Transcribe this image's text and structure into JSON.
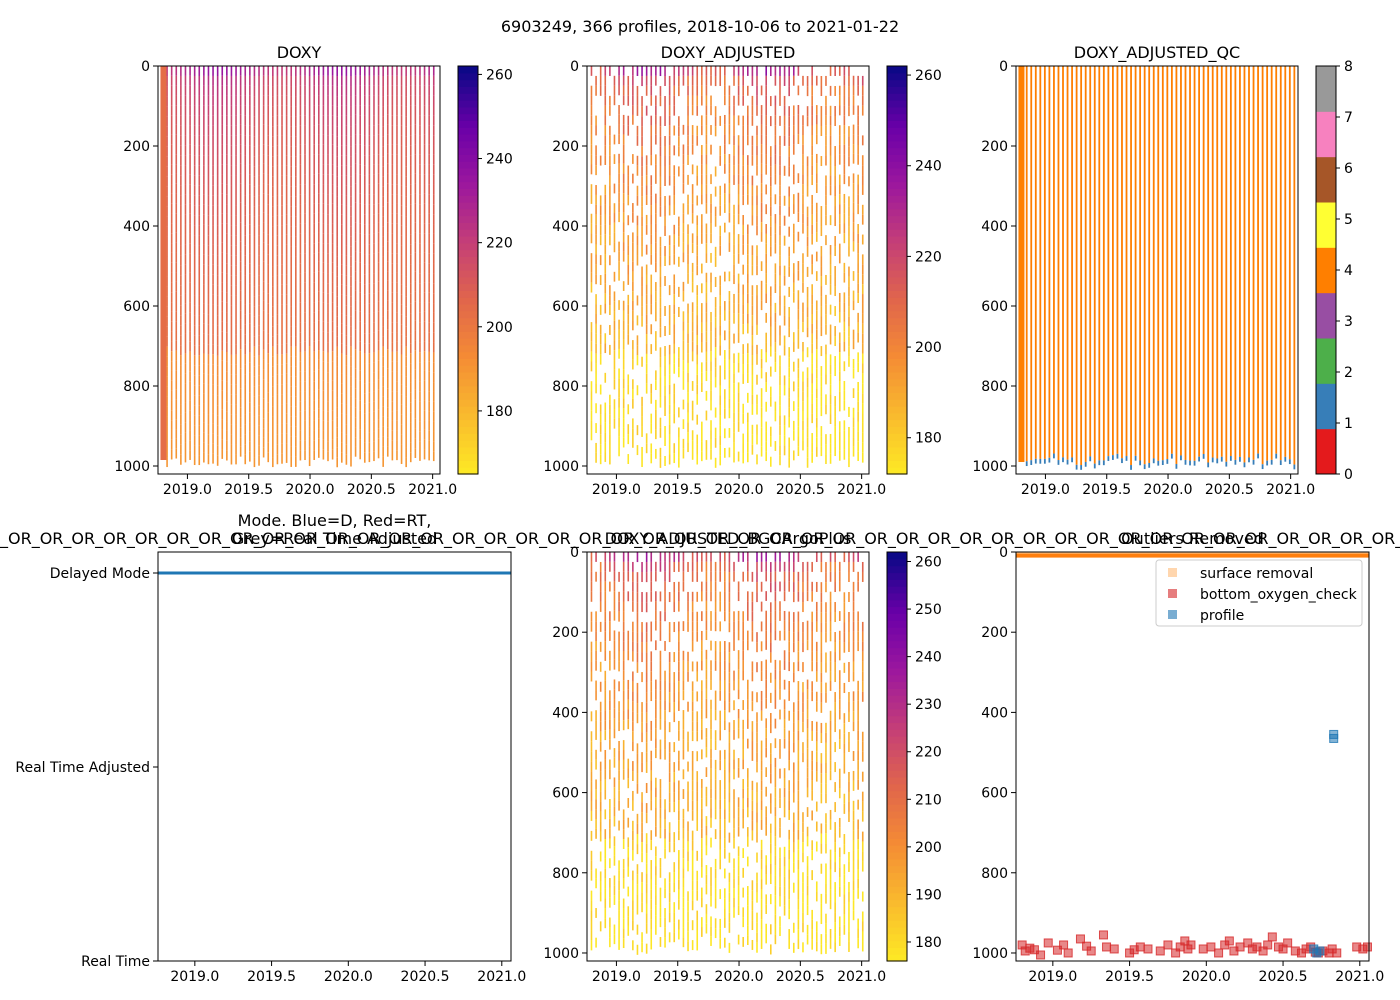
{
  "figure_title": "6903249, 366 profiles, 2018-10-06 to 2021-01-22",
  "colors": {
    "depth_colormap": [
      "#fde725",
      "#f9b92e",
      "#f48b35",
      "#e0654c",
      "#c43e78",
      "#9c179e",
      "#6a00a8",
      "#0d0887"
    ],
    "qc_colors": [
      "#e41a1c",
      "#377eb8",
      "#4daf4a",
      "#984ea3",
      "#ff7f00",
      "#ffff33",
      "#a65628",
      "#f781bf",
      "#999999"
    ],
    "delayed_mode": "#1f77b4",
    "surface_removal": "#ffbb78",
    "bottom_oxygen_check": "#d62728",
    "profile": "#1f77b4"
  },
  "chart_data": [
    {
      "id": "doxy",
      "type": "heatmap",
      "title": "DOXY",
      "xlim": [
        2018.76,
        2021.06
      ],
      "xticks": [
        "2019.0",
        "2019.5",
        "2020.0",
        "2020.5",
        "2021.0"
      ],
      "ylim": [
        1020,
        0
      ],
      "yticks": [
        "0",
        "200",
        "400",
        "600",
        "800",
        "1000"
      ],
      "colorbar": {
        "min": 165,
        "max": 262,
        "ticks": [
          "180",
          "200",
          "220",
          "240",
          "260"
        ]
      }
    },
    {
      "id": "doxy_adjusted",
      "type": "heatmap",
      "title": "DOXY_ADJUSTED",
      "xlim": [
        2018.76,
        2021.06
      ],
      "xticks": [
        "2019.0",
        "2019.5",
        "2020.0",
        "2020.5",
        "2021.0"
      ],
      "ylim": [
        1020,
        0
      ],
      "yticks": [
        "0",
        "200",
        "400",
        "600",
        "800",
        "1000"
      ],
      "colorbar": {
        "min": 172,
        "max": 262,
        "ticks": [
          "180",
          "200",
          "220",
          "240",
          "260"
        ]
      }
    },
    {
      "id": "doxy_adjusted_qc",
      "type": "heatmap",
      "title": "DOXY_ADJUSTED_QC",
      "xlim": [
        2018.76,
        2021.06
      ],
      "xticks": [
        "2019.0",
        "2019.5",
        "2020.0",
        "2020.5",
        "2021.0"
      ],
      "ylim": [
        1020,
        0
      ],
      "yticks": [
        "0",
        "200",
        "400",
        "600",
        "800",
        "1000"
      ],
      "colorbar": {
        "min": 0,
        "max": 8,
        "ticks": [
          "0",
          "1",
          "2",
          "3",
          "4",
          "5",
          "6",
          "7",
          "8"
        ]
      },
      "dominant_flag": 4,
      "bottom_flag": 1
    },
    {
      "id": "mode",
      "type": "scatter",
      "title": "Mode. Blue=D, Red=RT,",
      "title_line2": "Grey=Real Time Adjusted",
      "overlay_text": "_OR_OR_OR_OR_OR_OR_OR_OR_OR_OR_OR_OR_OR_OR_OR_OR_OR_OR_OR_OR_OR_OR_OR_OR_OR_OR_OR_OR_OR_OR_OR_OR_OR_OR_OR_OR_OR_OR_OR_OR_OR_OR_OR_OR_OR_OR_OR_OR_OR_OR_OR_OR_OR_OR_OR_OR_OR_OR_OR_OR_OR_OR_OR_OR_OR_OR_OR_OR_OR_OR_OR_OR_OR_OR_OR",
      "categories": [
        "Delayed Mode",
        "Real Time Adjusted",
        "Real Time"
      ],
      "xlim": [
        2018.76,
        2021.06
      ],
      "xticks": [
        "2019.0",
        "2019.5",
        "2020.0",
        "2020.5",
        "2021.0"
      ],
      "series": [
        {
          "name": "D",
          "category": "Delayed Mode",
          "x_range": [
            2018.76,
            2021.06
          ],
          "count": 366
        }
      ]
    },
    {
      "id": "bgcargoplus",
      "type": "heatmap",
      "title": "DOXY_ADJUSTED_BGCArgoPlus",
      "xlim": [
        2018.76,
        2021.06
      ],
      "xticks": [
        "2019.0",
        "2019.5",
        "2020.0",
        "2020.5",
        "2021.0"
      ],
      "ylim": [
        1020,
        0
      ],
      "yticks": [
        "0",
        "200",
        "400",
        "600",
        "800",
        "1000"
      ],
      "colorbar": {
        "min": 176,
        "max": 262,
        "ticks": [
          "180",
          "190",
          "200",
          "210",
          "220",
          "230",
          "240",
          "250",
          "260"
        ]
      }
    },
    {
      "id": "outliers",
      "type": "scatter",
      "title": "Outliers Removed",
      "xlim": [
        2018.76,
        2021.06
      ],
      "xticks": [
        "2019.0",
        "2019.5",
        "2020.0",
        "2020.5",
        "2021.0"
      ],
      "ylim": [
        1020,
        0
      ],
      "yticks": [
        "0",
        "200",
        "400",
        "600",
        "800",
        "1000"
      ],
      "legend": [
        "surface removal",
        "bottom_oxygen_check",
        "profile"
      ],
      "legend_position": "top-right",
      "series": [
        {
          "name": "surface removal",
          "color_key": "surface_removal",
          "x_range": [
            2018.76,
            2021.06
          ],
          "y_range": [
            0,
            10
          ]
        },
        {
          "name": "bottom_oxygen_check",
          "color_key": "bottom_oxygen_check",
          "points": [
            [
              2018.8,
              980
            ],
            [
              2018.82,
              995
            ],
            [
              2018.85,
              988
            ],
            [
              2018.88,
              992
            ],
            [
              2018.92,
              1005
            ],
            [
              2018.97,
              975
            ],
            [
              2019.03,
              993
            ],
            [
              2019.07,
              980
            ],
            [
              2019.1,
              1000
            ],
            [
              2019.18,
              965
            ],
            [
              2019.22,
              983
            ],
            [
              2019.25,
              995
            ],
            [
              2019.33,
              955
            ],
            [
              2019.35,
              985
            ],
            [
              2019.4,
              990
            ],
            [
              2019.5,
              1000
            ],
            [
              2019.53,
              992
            ],
            [
              2019.57,
              985
            ],
            [
              2019.62,
              990
            ],
            [
              2019.7,
              995
            ],
            [
              2019.75,
              980
            ],
            [
              2019.8,
              1000
            ],
            [
              2019.83,
              985
            ],
            [
              2019.86,
              970
            ],
            [
              2019.88,
              990
            ],
            [
              2019.9,
              980
            ],
            [
              2019.98,
              990
            ],
            [
              2020.03,
              985
            ],
            [
              2020.08,
              1000
            ],
            [
              2020.12,
              980
            ],
            [
              2020.15,
              970
            ],
            [
              2020.18,
              995
            ],
            [
              2020.22,
              985
            ],
            [
              2020.27,
              975
            ],
            [
              2020.3,
              990
            ],
            [
              2020.33,
              985
            ],
            [
              2020.37,
              995
            ],
            [
              2020.4,
              980
            ],
            [
              2020.43,
              960
            ],
            [
              2020.47,
              985
            ],
            [
              2020.5,
              990
            ],
            [
              2020.53,
              975
            ],
            [
              2020.58,
              995
            ],
            [
              2020.62,
              1000
            ],
            [
              2020.65,
              990
            ],
            [
              2020.68,
              985
            ],
            [
              2020.71,
              998
            ],
            [
              2020.73,
              1000
            ],
            [
              2020.76,
              995
            ],
            [
              2020.8,
              1000
            ],
            [
              2020.82,
              990
            ],
            [
              2020.85,
              1000
            ],
            [
              2020.98,
              985
            ],
            [
              2021.02,
              990
            ],
            [
              2021.05,
              985
            ]
          ]
        },
        {
          "name": "profile",
          "color_key": "profile",
          "points": [
            [
              2020.83,
              455
            ],
            [
              2020.83,
              465
            ],
            [
              2020.7,
              990
            ],
            [
              2020.72,
              1000
            ],
            [
              2020.74,
              995
            ]
          ]
        }
      ]
    }
  ]
}
